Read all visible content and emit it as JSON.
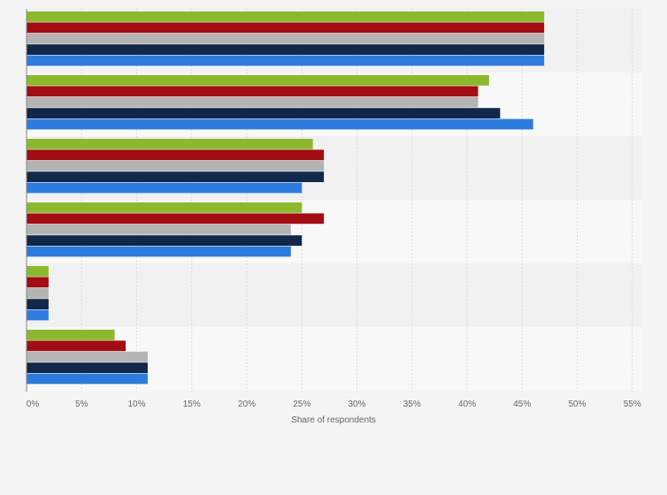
{
  "chart_data": {
    "type": "bar",
    "orientation": "horizontal",
    "categories": [
      "",
      "",
      "",
      "",
      "",
      ""
    ],
    "series": [
      {
        "color": "#8ab92d",
        "values": [
          47,
          42,
          26,
          25,
          2,
          8
        ]
      },
      {
        "color": "#a10d12",
        "values": [
          47,
          41,
          27,
          27,
          2,
          9
        ]
      },
      {
        "color": "#b4b4b4",
        "values": [
          47,
          41,
          27,
          24,
          2,
          11
        ]
      },
      {
        "color": "#11284a",
        "values": [
          47,
          43,
          27,
          25,
          2,
          11
        ]
      },
      {
        "color": "#2e7bde",
        "values": [
          47,
          46,
          25,
          24,
          2,
          11
        ]
      }
    ],
    "xlabel": "Share of respondents",
    "xlim": [
      0,
      55
    ],
    "xticks": [
      "0%",
      "5%",
      "10%",
      "15%",
      "20%",
      "25%",
      "30%",
      "35%",
      "40%",
      "45%",
      "50%",
      "55%"
    ],
    "grid": true,
    "legend": "none"
  }
}
